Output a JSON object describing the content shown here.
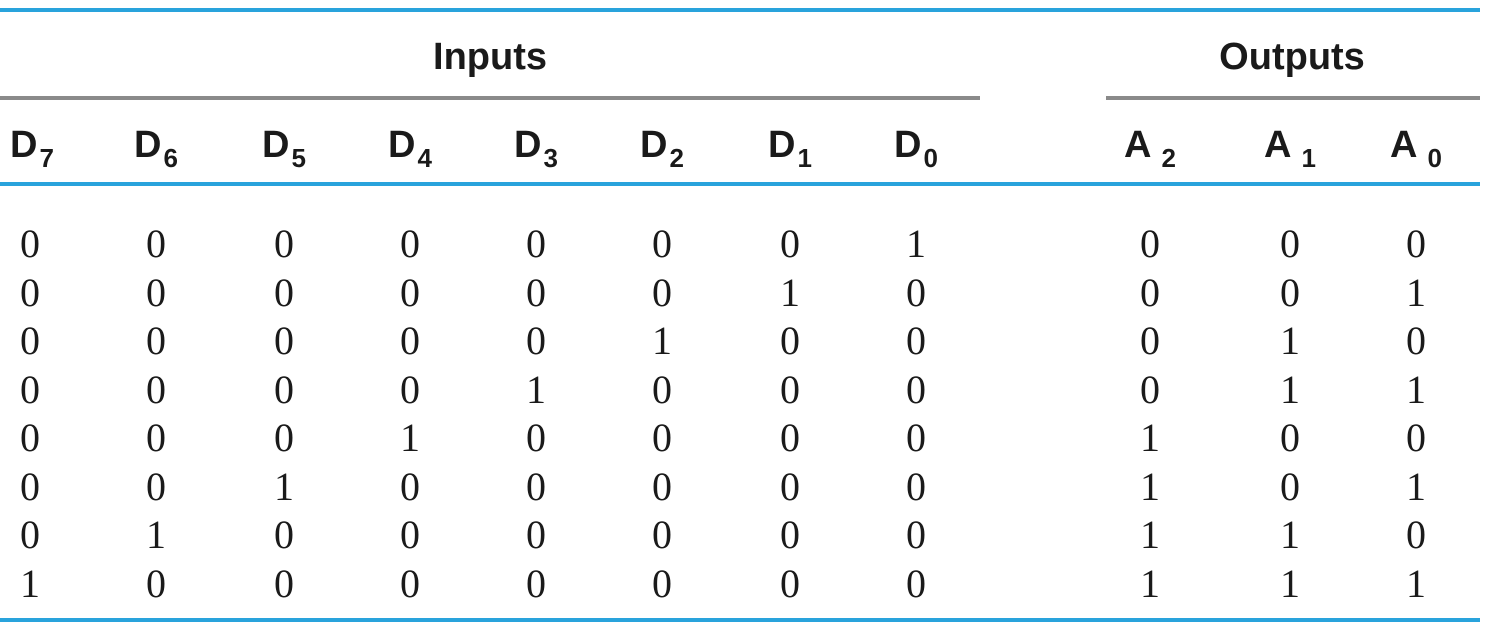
{
  "groups": {
    "inputs": "Inputs",
    "outputs": "Outputs"
  },
  "input_columns": [
    {
      "base": "D",
      "sub": "7"
    },
    {
      "base": "D",
      "sub": "6"
    },
    {
      "base": "D",
      "sub": "5"
    },
    {
      "base": "D",
      "sub": "4"
    },
    {
      "base": "D",
      "sub": "3"
    },
    {
      "base": "D",
      "sub": "2"
    },
    {
      "base": "D",
      "sub": "1"
    },
    {
      "base": "D",
      "sub": "0"
    }
  ],
  "output_columns": [
    {
      "base": "A",
      "sub": "2"
    },
    {
      "base": "A",
      "sub": "1"
    },
    {
      "base": "A",
      "sub": "0"
    }
  ],
  "rows": [
    {
      "inputs": [
        "0",
        "0",
        "0",
        "0",
        "0",
        "0",
        "0",
        "1"
      ],
      "outputs": [
        "0",
        "0",
        "0"
      ]
    },
    {
      "inputs": [
        "0",
        "0",
        "0",
        "0",
        "0",
        "0",
        "1",
        "0"
      ],
      "outputs": [
        "0",
        "0",
        "1"
      ]
    },
    {
      "inputs": [
        "0",
        "0",
        "0",
        "0",
        "0",
        "1",
        "0",
        "0"
      ],
      "outputs": [
        "0",
        "1",
        "0"
      ]
    },
    {
      "inputs": [
        "0",
        "0",
        "0",
        "0",
        "1",
        "0",
        "0",
        "0"
      ],
      "outputs": [
        "0",
        "1",
        "1"
      ]
    },
    {
      "inputs": [
        "0",
        "0",
        "0",
        "1",
        "0",
        "0",
        "0",
        "0"
      ],
      "outputs": [
        "1",
        "0",
        "0"
      ]
    },
    {
      "inputs": [
        "0",
        "0",
        "1",
        "0",
        "0",
        "0",
        "0",
        "0"
      ],
      "outputs": [
        "1",
        "0",
        "1"
      ]
    },
    {
      "inputs": [
        "0",
        "1",
        "0",
        "0",
        "0",
        "0",
        "0",
        "0"
      ],
      "outputs": [
        "1",
        "1",
        "0"
      ]
    },
    {
      "inputs": [
        "1",
        "0",
        "0",
        "0",
        "0",
        "0",
        "0",
        "0"
      ],
      "outputs": [
        "1",
        "1",
        "1"
      ]
    }
  ],
  "colors": {
    "rule_blue": "#29a3dc",
    "rule_gray": "#8a8a8a",
    "text": "#1a1a1a"
  }
}
